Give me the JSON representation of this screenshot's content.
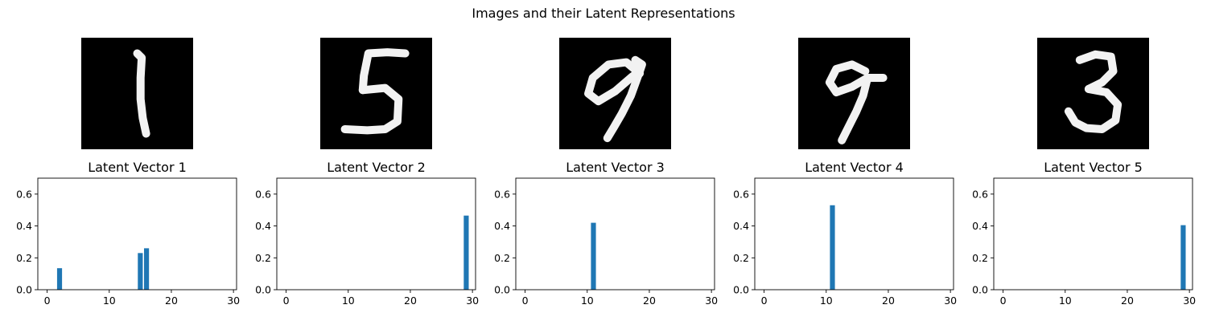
{
  "figure": {
    "title": "Images and their Latent Representations"
  },
  "images": [
    {
      "label": "1",
      "strokes": [
        [
          [
            0.5,
            0.14
          ],
          [
            0.54,
            0.18
          ],
          [
            0.53,
            0.36
          ],
          [
            0.53,
            0.55
          ],
          [
            0.55,
            0.72
          ],
          [
            0.58,
            0.86
          ]
        ]
      ]
    },
    {
      "label": "5",
      "strokes": [
        [
          [
            0.76,
            0.14
          ],
          [
            0.6,
            0.13
          ],
          [
            0.43,
            0.14
          ],
          [
            0.39,
            0.34
          ],
          [
            0.38,
            0.47
          ]
        ],
        [
          [
            0.38,
            0.47
          ],
          [
            0.58,
            0.45
          ],
          [
            0.7,
            0.55
          ],
          [
            0.69,
            0.75
          ],
          [
            0.58,
            0.82
          ],
          [
            0.42,
            0.83
          ],
          [
            0.22,
            0.82
          ]
        ]
      ]
    },
    {
      "label": "9",
      "strokes": [
        [
          [
            0.72,
            0.32
          ],
          [
            0.6,
            0.22
          ],
          [
            0.44,
            0.24
          ],
          [
            0.3,
            0.36
          ],
          [
            0.26,
            0.5
          ],
          [
            0.35,
            0.57
          ],
          [
            0.5,
            0.48
          ],
          [
            0.65,
            0.35
          ],
          [
            0.72,
            0.3
          ],
          [
            0.74,
            0.24
          ],
          [
            0.68,
            0.2
          ]
        ],
        [
          [
            0.72,
            0.3
          ],
          [
            0.64,
            0.52
          ],
          [
            0.56,
            0.68
          ],
          [
            0.49,
            0.8
          ],
          [
            0.43,
            0.9
          ]
        ]
      ]
    },
    {
      "label": "9",
      "strokes": [
        [
          [
            0.6,
            0.3
          ],
          [
            0.48,
            0.24
          ],
          [
            0.34,
            0.28
          ],
          [
            0.28,
            0.4
          ],
          [
            0.34,
            0.49
          ],
          [
            0.48,
            0.44
          ],
          [
            0.62,
            0.36
          ],
          [
            0.76,
            0.36
          ]
        ],
        [
          [
            0.62,
            0.36
          ],
          [
            0.58,
            0.52
          ],
          [
            0.52,
            0.66
          ],
          [
            0.45,
            0.8
          ],
          [
            0.39,
            0.92
          ]
        ]
      ]
    },
    {
      "label": "3",
      "strokes": [
        [
          [
            0.38,
            0.2
          ],
          [
            0.52,
            0.15
          ],
          [
            0.66,
            0.17
          ],
          [
            0.68,
            0.3
          ],
          [
            0.58,
            0.4
          ],
          [
            0.46,
            0.46
          ]
        ],
        [
          [
            0.46,
            0.46
          ],
          [
            0.62,
            0.49
          ],
          [
            0.72,
            0.6
          ],
          [
            0.7,
            0.74
          ],
          [
            0.58,
            0.82
          ],
          [
            0.44,
            0.81
          ],
          [
            0.34,
            0.76
          ],
          [
            0.28,
            0.66
          ]
        ]
      ]
    }
  ],
  "chart_data": [
    {
      "type": "bar",
      "title": "Latent Vector 1",
      "xlim": [
        -1.5,
        30.5
      ],
      "ylim": [
        0,
        0.7
      ],
      "xticks": [
        0,
        10,
        20,
        30
      ],
      "yticks": [
        0.0,
        0.2,
        0.4,
        0.6
      ],
      "xtick_labels": [
        "0",
        "10",
        "20",
        "30"
      ],
      "ytick_labels": [
        "0.0",
        "0.2",
        "0.4",
        "0.6"
      ],
      "bars": [
        {
          "x": 2,
          "value": 0.135
        },
        {
          "x": 15,
          "value": 0.23
        },
        {
          "x": 16,
          "value": 0.26
        }
      ],
      "color": "#1f77b4"
    },
    {
      "type": "bar",
      "title": "Latent Vector 2",
      "xlim": [
        -1.5,
        30.5
      ],
      "ylim": [
        0,
        0.7
      ],
      "xticks": [
        0,
        10,
        20,
        30
      ],
      "yticks": [
        0.0,
        0.2,
        0.4,
        0.6
      ],
      "xtick_labels": [
        "0",
        "10",
        "20",
        "30"
      ],
      "ytick_labels": [
        "0.0",
        "0.2",
        "0.4",
        "0.6"
      ],
      "bars": [
        {
          "x": 29,
          "value": 0.465
        }
      ],
      "color": "#1f77b4"
    },
    {
      "type": "bar",
      "title": "Latent Vector 3",
      "xlim": [
        -1.5,
        30.5
      ],
      "ylim": [
        0,
        0.7
      ],
      "xticks": [
        0,
        10,
        20,
        30
      ],
      "yticks": [
        0.0,
        0.2,
        0.4,
        0.6
      ],
      "xtick_labels": [
        "0",
        "10",
        "20",
        "30"
      ],
      "ytick_labels": [
        "0.0",
        "0.2",
        "0.4",
        "0.6"
      ],
      "bars": [
        {
          "x": 11,
          "value": 0.42
        }
      ],
      "color": "#1f77b4"
    },
    {
      "type": "bar",
      "title": "Latent Vector 4",
      "xlim": [
        -1.5,
        30.5
      ],
      "ylim": [
        0,
        0.7
      ],
      "xticks": [
        0,
        10,
        20,
        30
      ],
      "yticks": [
        0.0,
        0.2,
        0.4,
        0.6
      ],
      "xtick_labels": [
        "0",
        "10",
        "20",
        "30"
      ],
      "ytick_labels": [
        "0.0",
        "0.2",
        "0.4",
        "0.6"
      ],
      "bars": [
        {
          "x": 11,
          "value": 0.53
        }
      ],
      "color": "#1f77b4"
    },
    {
      "type": "bar",
      "title": "Latent Vector 5",
      "xlim": [
        -1.5,
        30.5
      ],
      "ylim": [
        0,
        0.7
      ],
      "xticks": [
        0,
        10,
        20,
        30
      ],
      "yticks": [
        0.0,
        0.2,
        0.4,
        0.6
      ],
      "xtick_labels": [
        "0",
        "10",
        "20",
        "30"
      ],
      "ytick_labels": [
        "0.0",
        "0.2",
        "0.4",
        "0.6"
      ],
      "bars": [
        {
          "x": 29,
          "value": 0.405
        }
      ],
      "color": "#1f77b4"
    }
  ]
}
